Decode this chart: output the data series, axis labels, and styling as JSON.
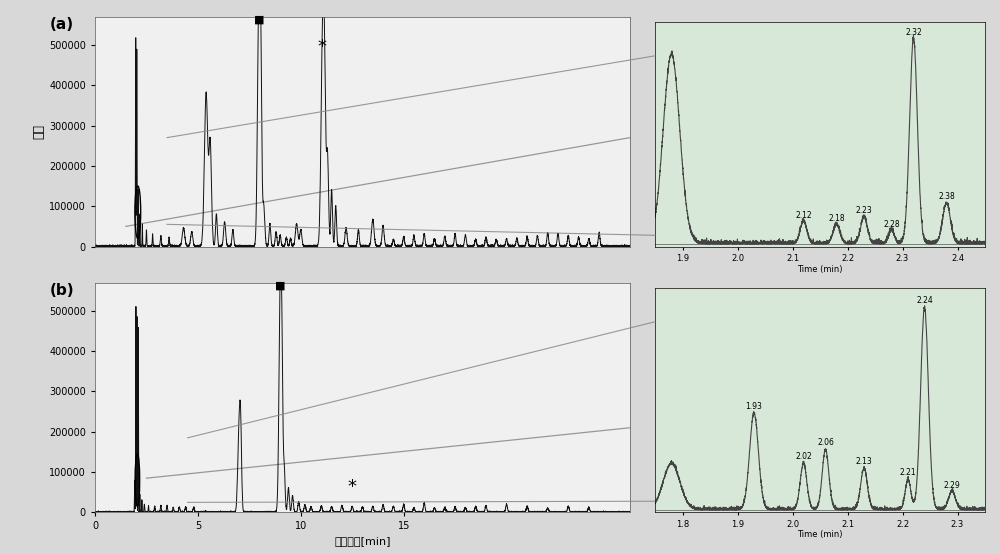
{
  "fig_width": 10.0,
  "fig_height": 5.54,
  "bg_color": "#d8d8d8",
  "panel_bg": "#f0f0f0",
  "inset_bg": "#d8e8d8",
  "main_line_color": "#111111",
  "ylabel": "强度",
  "xlabel": "保留时间[min]",
  "yticks": [
    0,
    100000,
    200000,
    300000,
    400000,
    500000
  ],
  "ytick_labels": [
    "0",
    "100000",
    "200000",
    "300000",
    "400000",
    "500000"
  ],
  "xticks_b": [
    0,
    5,
    10,
    15
  ],
  "xtick_labels_b": [
    "0",
    "5",
    "10",
    "15"
  ],
  "panel_a_label": "(a)",
  "panel_b_label": "(b)",
  "inset_a_xticks": [
    1.9,
    2.0,
    2.1,
    2.2,
    2.3,
    2.4
  ],
  "inset_b_xticks": [
    1.8,
    1.9,
    2.0,
    2.1,
    2.2,
    2.3
  ],
  "square_marker": "■",
  "star_marker": "*"
}
